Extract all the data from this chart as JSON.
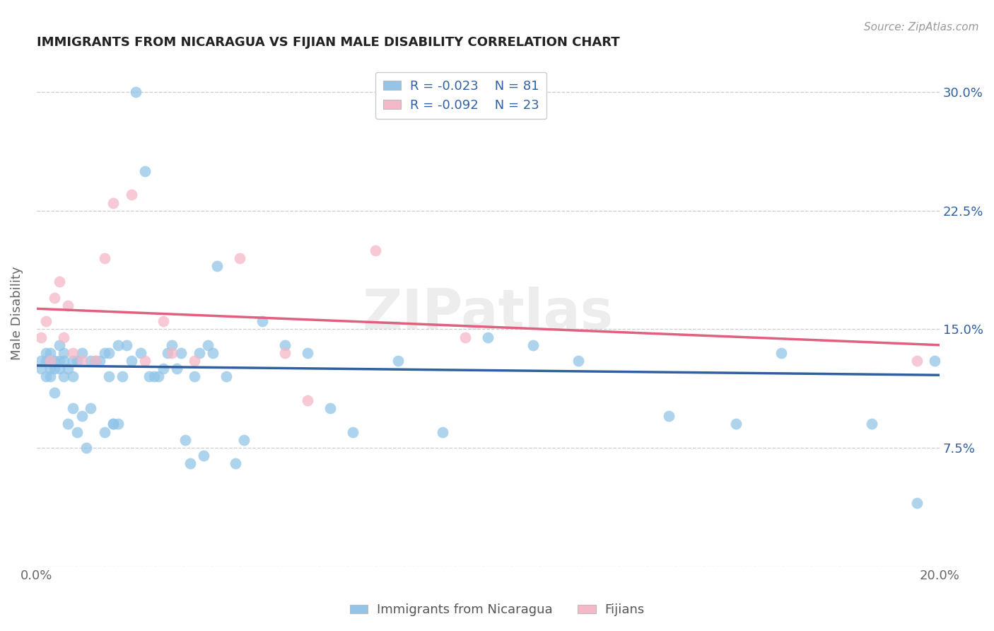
{
  "title": "IMMIGRANTS FROM NICARAGUA VS FIJIAN MALE DISABILITY CORRELATION CHART",
  "source": "Source: ZipAtlas.com",
  "ylabel": "Male Disability",
  "xlim": [
    0.0,
    0.2
  ],
  "ylim": [
    0.0,
    0.32
  ],
  "xticks": [
    0.0,
    0.04,
    0.08,
    0.12,
    0.16,
    0.2
  ],
  "xticklabels": [
    "0.0%",
    "",
    "",
    "",
    "",
    "20.0%"
  ],
  "yticks": [
    0.0,
    0.075,
    0.15,
    0.225,
    0.3
  ],
  "right_yticklabels": [
    "",
    "7.5%",
    "15.0%",
    "22.5%",
    "30.0%"
  ],
  "legend_R_blue": "-0.023",
  "legend_N_blue": "81",
  "legend_R_pink": "-0.092",
  "legend_N_pink": "23",
  "blue_color": "#92C5E8",
  "pink_color": "#F5B8C8",
  "blue_line_color": "#3060A0",
  "pink_line_color": "#E06080",
  "watermark": "ZIPatlas",
  "blue_points_x": [
    0.001,
    0.001,
    0.002,
    0.002,
    0.002,
    0.003,
    0.003,
    0.003,
    0.003,
    0.004,
    0.004,
    0.004,
    0.005,
    0.005,
    0.005,
    0.006,
    0.006,
    0.006,
    0.007,
    0.007,
    0.008,
    0.008,
    0.008,
    0.009,
    0.009,
    0.01,
    0.01,
    0.011,
    0.012,
    0.012,
    0.013,
    0.014,
    0.015,
    0.015,
    0.016,
    0.016,
    0.017,
    0.017,
    0.018,
    0.018,
    0.019,
    0.02,
    0.021,
    0.022,
    0.023,
    0.024,
    0.025,
    0.026,
    0.027,
    0.028,
    0.029,
    0.03,
    0.031,
    0.032,
    0.033,
    0.034,
    0.035,
    0.036,
    0.037,
    0.038,
    0.039,
    0.04,
    0.042,
    0.044,
    0.046,
    0.05,
    0.055,
    0.06,
    0.065,
    0.07,
    0.08,
    0.09,
    0.1,
    0.11,
    0.12,
    0.14,
    0.155,
    0.165,
    0.185,
    0.195,
    0.199
  ],
  "blue_points_y": [
    0.125,
    0.13,
    0.12,
    0.135,
    0.13,
    0.125,
    0.13,
    0.135,
    0.12,
    0.125,
    0.13,
    0.11,
    0.13,
    0.125,
    0.14,
    0.13,
    0.12,
    0.135,
    0.125,
    0.09,
    0.13,
    0.12,
    0.1,
    0.13,
    0.085,
    0.135,
    0.095,
    0.075,
    0.13,
    0.1,
    0.13,
    0.13,
    0.135,
    0.085,
    0.135,
    0.12,
    0.09,
    0.09,
    0.09,
    0.14,
    0.12,
    0.14,
    0.13,
    0.3,
    0.135,
    0.25,
    0.12,
    0.12,
    0.12,
    0.125,
    0.135,
    0.14,
    0.125,
    0.135,
    0.08,
    0.065,
    0.12,
    0.135,
    0.07,
    0.14,
    0.135,
    0.19,
    0.12,
    0.065,
    0.08,
    0.155,
    0.14,
    0.135,
    0.1,
    0.085,
    0.13,
    0.085,
    0.145,
    0.14,
    0.13,
    0.095,
    0.09,
    0.135,
    0.09,
    0.04,
    0.13
  ],
  "pink_points_x": [
    0.001,
    0.002,
    0.003,
    0.004,
    0.005,
    0.006,
    0.007,
    0.008,
    0.01,
    0.013,
    0.015,
    0.017,
    0.021,
    0.024,
    0.028,
    0.03,
    0.035,
    0.045,
    0.055,
    0.06,
    0.075,
    0.095,
    0.195
  ],
  "pink_points_y": [
    0.145,
    0.155,
    0.13,
    0.17,
    0.18,
    0.145,
    0.165,
    0.135,
    0.13,
    0.13,
    0.195,
    0.23,
    0.235,
    0.13,
    0.155,
    0.135,
    0.13,
    0.195,
    0.135,
    0.105,
    0.2,
    0.145,
    0.13
  ],
  "blue_line_x0": 0.0,
  "blue_line_y0": 0.127,
  "blue_line_x1": 0.2,
  "blue_line_y1": 0.121,
  "pink_line_x0": 0.0,
  "pink_line_y0": 0.163,
  "pink_line_x1": 0.2,
  "pink_line_y1": 0.14
}
